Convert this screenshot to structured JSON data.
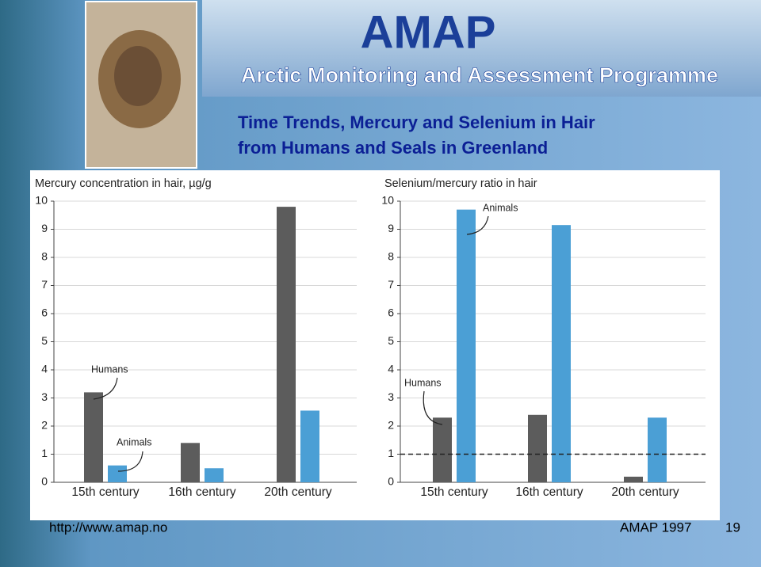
{
  "header": {
    "logo": "AMAP",
    "subtitle": "Arctic Monitoring and Assessment Programme"
  },
  "title": [
    "Time Trends, Mercury and Selenium in Hair",
    "from Humans and Seals in Greenland"
  ],
  "chart_data": [
    {
      "type": "bar",
      "title": "Mercury concentration in hair, µg/g",
      "categories": [
        "15th century",
        "16th century",
        "20th century"
      ],
      "series": [
        {
          "name": "Humans",
          "color": "#5c5c5c",
          "values": [
            3.2,
            1.4,
            9.8
          ]
        },
        {
          "name": "Animals",
          "color": "#4b9fd5",
          "values": [
            0.6,
            0.5,
            2.55
          ]
        }
      ],
      "ylim": [
        0,
        10
      ],
      "yticks": [
        0,
        1,
        2,
        3,
        4,
        5,
        6,
        7,
        8,
        9,
        10
      ],
      "grid": true
    },
    {
      "type": "bar",
      "title": "Selenium/mercury ratio in hair",
      "categories": [
        "15th century",
        "16th century",
        "20th century"
      ],
      "series": [
        {
          "name": "Humans",
          "color": "#5c5c5c",
          "values": [
            2.3,
            2.4,
            0.2
          ]
        },
        {
          "name": "Animals",
          "color": "#4b9fd5",
          "values": [
            9.7,
            9.15,
            2.3
          ]
        }
      ],
      "ylim": [
        0,
        10
      ],
      "yticks": [
        0,
        1,
        2,
        3,
        4,
        5,
        6,
        7,
        8,
        9,
        10
      ],
      "grid": true,
      "reference_line": 1
    }
  ],
  "footer": {
    "url": "http://www.amap.no",
    "source": "AMAP 1997",
    "page": "19"
  }
}
